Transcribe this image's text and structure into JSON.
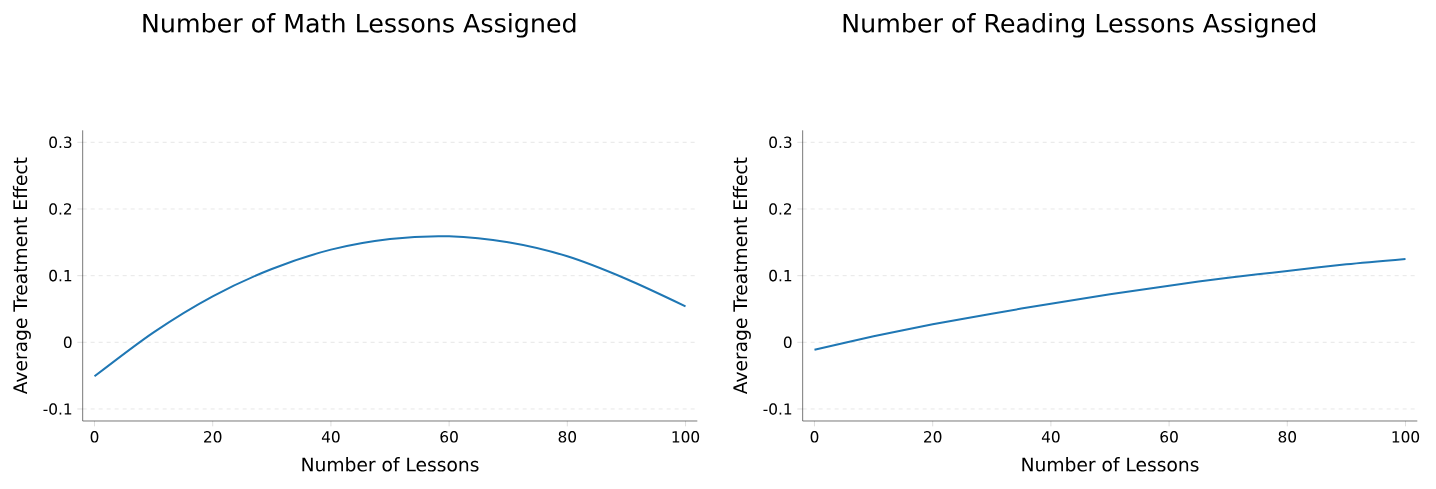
{
  "chart_data": [
    {
      "type": "line",
      "title": "Number of Math Lessons Assigned",
      "xlabel": "Number of Lessons",
      "ylabel": "Average Treatment Effect",
      "x": [
        0,
        10,
        20,
        30,
        40,
        50,
        60,
        70,
        80,
        90,
        100
      ],
      "series": [
        {
          "color": "#1f77b4",
          "values": [
            -0.051,
            0.015,
            0.069,
            0.11,
            0.139,
            0.155,
            0.159,
            0.15,
            0.129,
            0.095,
            0.054
          ]
        }
      ],
      "xlim": [
        -2,
        102
      ],
      "ylim": [
        -0.118,
        0.318
      ],
      "xticks": [
        0,
        20,
        40,
        60,
        80,
        100
      ],
      "yticks": [
        -0.1,
        0,
        0.1,
        0.2,
        0.3
      ],
      "grid": "y",
      "marker": "none",
      "line_style": "solid"
    },
    {
      "type": "line",
      "title": "Number of Reading Lessons Assigned",
      "xlabel": "Number of Lessons",
      "ylabel": "Average Treatment Effect",
      "x": [
        0,
        10,
        20,
        30,
        40,
        50,
        60,
        70,
        80,
        90,
        100
      ],
      "series": [
        {
          "color": "#1f77b4",
          "values": [
            -0.011,
            0.009,
            0.027,
            0.043,
            0.058,
            0.072,
            0.085,
            0.097,
            0.107,
            0.117,
            0.125
          ]
        }
      ],
      "xlim": [
        -2,
        102
      ],
      "ylim": [
        -0.118,
        0.318
      ],
      "xticks": [
        0,
        20,
        40,
        60,
        80,
        100
      ],
      "yticks": [
        -0.1,
        0,
        0.1,
        0.2,
        0.3
      ],
      "grid": "y",
      "marker": "none",
      "line_style": "solid"
    }
  ]
}
